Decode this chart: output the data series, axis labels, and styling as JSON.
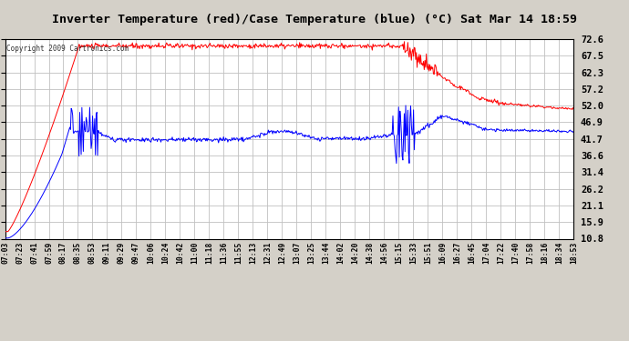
{
  "title": "Inverter Temperature (red)/Case Temperature (blue) (°C) Sat Mar 14 18:59",
  "copyright": "Copyright 2009 Cartronics.com",
  "ylabel_right_ticks": [
    10.8,
    15.9,
    21.1,
    26.2,
    31.4,
    36.6,
    41.7,
    46.9,
    52.0,
    57.2,
    62.3,
    67.5,
    72.6
  ],
  "ylim": [
    10.8,
    72.6
  ],
  "x_labels": [
    "07:03",
    "07:23",
    "07:41",
    "07:59",
    "08:17",
    "08:35",
    "08:53",
    "09:11",
    "09:29",
    "09:47",
    "10:06",
    "10:24",
    "10:42",
    "11:00",
    "11:18",
    "11:36",
    "11:55",
    "12:13",
    "12:31",
    "12:49",
    "13:07",
    "13:25",
    "13:44",
    "14:02",
    "14:20",
    "14:38",
    "14:56",
    "15:15",
    "15:33",
    "15:51",
    "16:09",
    "16:27",
    "16:45",
    "17:04",
    "17:22",
    "17:40",
    "17:58",
    "18:16",
    "18:34",
    "18:53"
  ],
  "bg_color": "#d4d0c8",
  "plot_bg_color": "#ffffff",
  "grid_color": "#c0c0c0",
  "red_color": "#ff0000",
  "blue_color": "#0000ff",
  "border_color": "#000000"
}
